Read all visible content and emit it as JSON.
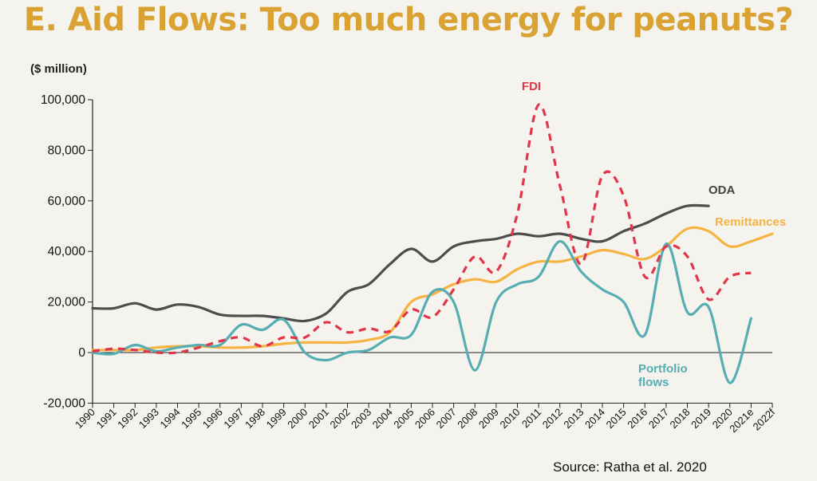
{
  "title": "E. Aid Flows: Too much energy for peanuts?",
  "unit_label": "($ million)",
  "source": "Source: Ratha et al. 2020",
  "chart_data": {
    "type": "line",
    "ylim": [
      -20000,
      100000
    ],
    "yticks": [
      -20000,
      0,
      20000,
      40000,
      60000,
      80000,
      100000
    ],
    "ytick_labels": [
      "-20,000",
      "0",
      "20,000",
      "40,000",
      "60,000",
      "80,000",
      "100,000"
    ],
    "categories": [
      "1990",
      "1991",
      "1992",
      "1993",
      "1994",
      "1995",
      "1996",
      "1997",
      "1998",
      "1999",
      "2000",
      "2001",
      "2002",
      "2003",
      "2004",
      "2005",
      "2006",
      "2007",
      "2008",
      "2009",
      "2010",
      "2011",
      "2012",
      "2013",
      "2014",
      "2015",
      "2016",
      "2017",
      "2018",
      "2019",
      "2020",
      "2021e",
      "2022f"
    ],
    "grid": false,
    "series": [
      {
        "name": "ODA",
        "color": "#4d4d4d",
        "dash": false,
        "values": [
          17500,
          17500,
          19500,
          17000,
          19000,
          18000,
          15000,
          14500,
          14500,
          13500,
          12500,
          15500,
          24000,
          27000,
          35000,
          41000,
          36000,
          42000,
          44000,
          45000,
          47000,
          46000,
          47000,
          45000,
          44000,
          48000,
          51000,
          55000,
          58000,
          58000,
          null,
          null,
          null
        ]
      },
      {
        "name": "Remittances",
        "color": "#f5b342",
        "dash": false,
        "values": [
          1000,
          1000,
          1000,
          2000,
          2500,
          2500,
          2000,
          2000,
          2500,
          3500,
          4000,
          4000,
          4000,
          5000,
          8000,
          20000,
          23000,
          27000,
          29000,
          28000,
          33000,
          36000,
          36000,
          38000,
          40500,
          39000,
          37000,
          42000,
          49000,
          48000,
          42000,
          44000,
          47000
        ]
      },
      {
        "name": "FDI",
        "color": "#e0364a",
        "dash": true,
        "values": [
          500,
          1500,
          1000,
          0,
          0,
          2000,
          4500,
          6000,
          2500,
          6000,
          6000,
          12000,
          8000,
          9500,
          8500,
          17000,
          14000,
          25000,
          38000,
          32000,
          55000,
          98000,
          66000,
          35000,
          70000,
          62000,
          30000,
          42000,
          38000,
          21000,
          30000,
          31500,
          null
        ]
      },
      {
        "name": "Portfolio flows",
        "color": "#56aeb2",
        "dash": false,
        "values": [
          0,
          -500,
          3000,
          500,
          2000,
          3000,
          3000,
          11000,
          9000,
          13000,
          0,
          -3000,
          0,
          1000,
          6000,
          7000,
          24000,
          20000,
          -7000,
          20000,
          27000,
          30000,
          44000,
          32000,
          25000,
          20000,
          7000,
          43000,
          16000,
          18000,
          -12000,
          13500,
          null
        ]
      }
    ],
    "annotations": {
      "ODA": "ODA",
      "FDI": "FDI",
      "Remittances": "Remittances",
      "Portfolio flows": [
        "Portfolio",
        "flows"
      ]
    }
  }
}
